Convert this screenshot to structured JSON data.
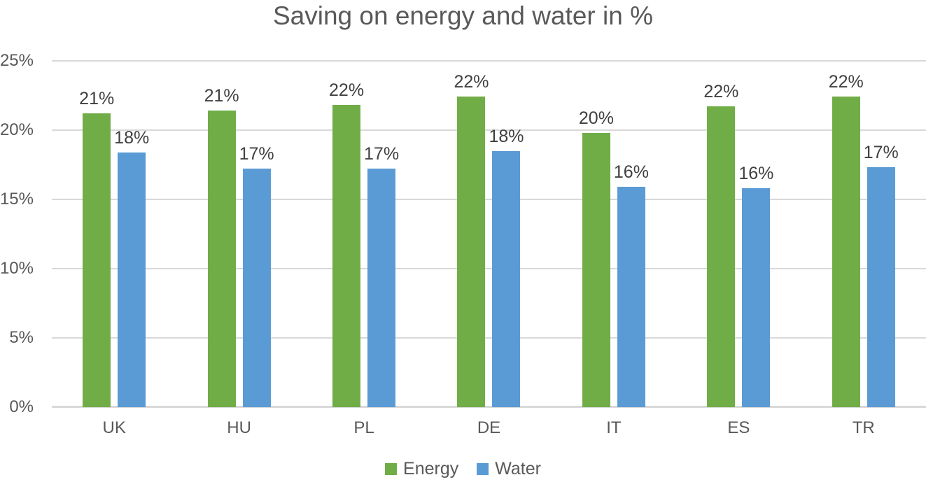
{
  "chart_data": {
    "type": "bar",
    "title": "Saving on energy and water in %",
    "categories": [
      "UK",
      "HU",
      "PL",
      "DE",
      "IT",
      "ES",
      "TR"
    ],
    "series": [
      {
        "name": "Energy",
        "color": "#70AD47",
        "values": [
          21.2,
          21.4,
          21.8,
          22.4,
          19.8,
          21.7,
          22.4
        ],
        "data_labels": [
          "21%",
          "21%",
          "22%",
          "22%",
          "20%",
          "22%",
          "22%"
        ]
      },
      {
        "name": "Water",
        "color": "#5B9BD5",
        "values": [
          18.4,
          17.2,
          17.2,
          18.5,
          15.9,
          15.8,
          17.3
        ],
        "data_labels": [
          "18%",
          "17%",
          "17%",
          "18%",
          "16%",
          "16%",
          "17%"
        ]
      }
    ],
    "ylim": [
      0,
      25
    ],
    "yticks": [
      {
        "value": 0,
        "label": "0%"
      },
      {
        "value": 5,
        "label": "5%"
      },
      {
        "value": 10,
        "label": "10%"
      },
      {
        "value": 15,
        "label": "15%"
      },
      {
        "value": 20,
        "label": "20%"
      },
      {
        "value": 25,
        "label": "25%"
      }
    ],
    "grid": true,
    "legend_position": "bottom",
    "colors": {
      "title_text": "#595959",
      "axis_text": "#595959",
      "data_label_text": "#404040",
      "gridline": "#D9D9D9",
      "baseline": "#D9D9D9",
      "background": "#FFFFFF"
    }
  }
}
